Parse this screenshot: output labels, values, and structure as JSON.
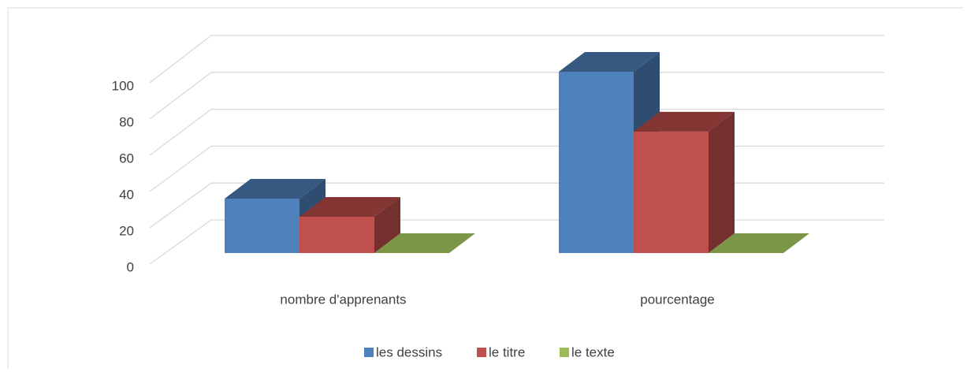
{
  "chart_data": {
    "type": "bar3d",
    "categories": [
      "nombre d'apprenants",
      "pourcentage"
    ],
    "series": [
      {
        "name": "les dessins",
        "color": "#4f81bd",
        "values": [
          30,
          100
        ]
      },
      {
        "name": "le titre",
        "color": "#c0504d",
        "values": [
          20,
          67
        ]
      },
      {
        "name": "le texte",
        "color": "#9bbb59",
        "values": [
          0,
          0
        ]
      }
    ],
    "ylim": [
      0,
      100
    ],
    "yticks": [
      0,
      20,
      40,
      60,
      80,
      100
    ],
    "grid": true,
    "legend": "bottom"
  }
}
